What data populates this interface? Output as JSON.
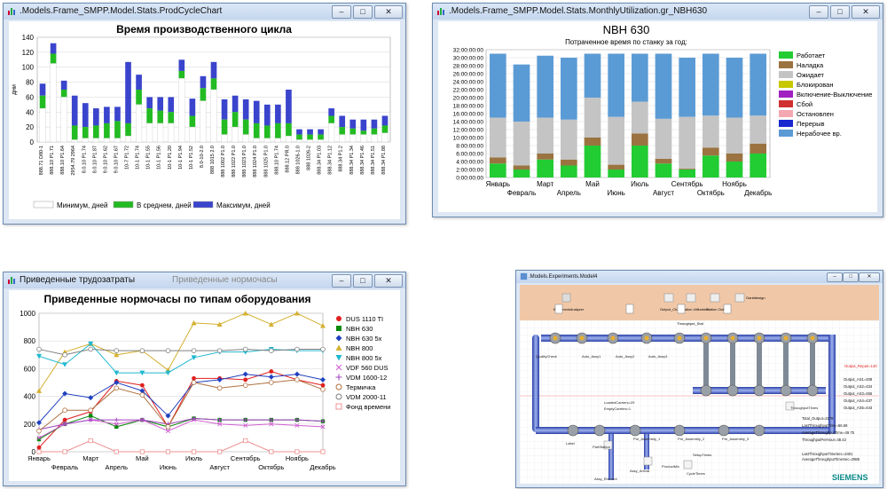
{
  "windows": {
    "w1": {
      "title": ".Models.Frame_SMPP.Model.Stats.ProdCycleChart"
    },
    "w2": {
      "title": ".Models.Frame_SMPP.Model.Stats.MonthlyUtilization.gr_NBH630"
    },
    "w3": {
      "title": "Приведенные трудозатраты",
      "title2": "Приведенные нормочасы"
    },
    "w4": {
      "title": ".Models.Experiments.Model4",
      "brand": "SIEMENS"
    }
  },
  "chart_data": [
    {
      "type": "bar",
      "title": "Время производственного цикла",
      "ylabel": "дни",
      "ylim": [
        0,
        140
      ],
      "yticks": [
        0,
        20,
        40,
        60,
        80,
        100,
        120,
        140
      ],
      "categories": [
        "888.71 D80-1",
        "888.10 P1.71",
        "888.10 P1.64",
        "2954.79 2964",
        "8.0.10 P1.74",
        "8.0.10 P1.87",
        "9.0.10 P1.62",
        "9.0.10 P1.67",
        "10-7 P1.72",
        "10-1 P1.74",
        "10-1 P1.55",
        "10-1 P1.56",
        "10-1 P1.20",
        "10-1 P1.94",
        "10-1 P1.52",
        "8.0-10-2.0",
        "888 1015 2.0",
        "888 1002 P1.0",
        "888 1022 P1.0",
        "888 1023 P1.0",
        "888 1024 P1.0",
        "888 1025 P1.0",
        "888.10 P1.74",
        "888.12 PR.0",
        "888 1026-1.0",
        "888 1026-2",
        "888.34 P1.03",
        "888.34 P1.12",
        "888.34 P1.2",
        "888.34 P1.34",
        "888.34 P1.46",
        "888.34 P1.51",
        "888.34 P1.88"
      ],
      "series": [
        {
          "name": "Минимум, дней",
          "values": [
            45,
            105,
            60,
            3,
            5,
            5,
            5,
            5,
            8,
            50,
            25,
            25,
            25,
            85,
            20,
            55,
            70,
            10,
            20,
            10,
            5,
            5,
            5,
            8,
            3,
            3,
            3,
            25,
            10,
            10,
            10,
            10,
            12
          ]
        },
        {
          "name": "В среднем, дней",
          "values": [
            62,
            118,
            70,
            22,
            20,
            22,
            25,
            28,
            25,
            70,
            45,
            42,
            40,
            95,
            35,
            72,
            85,
            30,
            40,
            30,
            25,
            22,
            25,
            25,
            10,
            10,
            10,
            35,
            20,
            18,
            15,
            18,
            22
          ]
        },
        {
          "name": "Максимум, дней",
          "values": [
            78,
            132,
            82,
            62,
            52,
            45,
            47,
            47,
            107,
            90,
            60,
            60,
            60,
            110,
            58,
            88,
            107,
            57,
            62,
            57,
            55,
            50,
            50,
            70,
            17,
            17,
            17,
            45,
            35,
            30,
            30,
            30,
            35
          ]
        }
      ],
      "legend": "bottom"
    },
    {
      "type": "bar",
      "title": "NBH 630",
      "subtitle": "Потраченное время по станку за год:",
      "ylim": [
        0,
        32
      ],
      "yticks": [
        "0:00:00:00",
        "2:00:00:00",
        "4:00:00:00",
        "6:00:00:00",
        "8:00:00:00",
        "10:00:00:00",
        "12:00:00:00",
        "14:00:00:00",
        "16:00:00:00",
        "18:00:00:00",
        "20:00:00:00",
        "22:00:00:00",
        "24:00:00:00",
        "26:00:00:00",
        "28:00:00:00",
        "30:00:00:00",
        "32:00:00:00"
      ],
      "categories": [
        "Январь",
        "Февраль",
        "Март",
        "Апрель",
        "Май",
        "Июнь",
        "Июль",
        "Август",
        "Сентябрь",
        "Октябрь",
        "Ноябрь",
        "Декабрь"
      ],
      "series": [
        {
          "name": "Работает",
          "color": "#22cc33",
          "values": [
            3.5,
            2.0,
            4.5,
            3.0,
            8.0,
            2.0,
            8.0,
            3.5,
            2.0,
            5.5,
            4.0,
            6.0
          ]
        },
        {
          "name": "Наладка",
          "color": "#9b7340",
          "values": [
            1.5,
            1.0,
            1.5,
            1.5,
            2.0,
            1.2,
            3.0,
            1.2,
            0.2,
            2.0,
            2.0,
            2.5
          ]
        },
        {
          "name": "Ожидает",
          "color": "#c4c4c4",
          "values": [
            10,
            11,
            9,
            10,
            10,
            12,
            8,
            10,
            13,
            8,
            9,
            7
          ]
        },
        {
          "name": "Блокирован",
          "color": "#c8c800",
          "values": [
            0,
            0,
            0,
            0,
            0,
            0,
            0,
            0,
            0,
            0,
            0,
            0
          ]
        },
        {
          "name": "Включение-Выключение",
          "color": "#a020c0",
          "values": [
            0,
            0,
            0,
            0,
            0,
            0,
            0,
            0,
            0,
            0,
            0,
            0
          ]
        },
        {
          "name": "Сбой",
          "color": "#d03030",
          "values": [
            0,
            0,
            0,
            0,
            0,
            0,
            0,
            0,
            0,
            0,
            0,
            0
          ]
        },
        {
          "name": "Остановлен",
          "color": "#f3a7b0",
          "values": [
            0,
            0,
            0,
            0,
            0,
            0,
            0,
            0,
            0,
            0,
            0,
            0
          ]
        },
        {
          "name": "Перерыв",
          "color": "#1a28d0",
          "values": [
            0,
            0,
            0,
            0,
            0,
            0,
            0,
            0,
            0,
            0,
            0,
            0
          ]
        },
        {
          "name": "Нерабочее вр.",
          "color": "#5b9bd5",
          "values": [
            16,
            14.3,
            15.5,
            15.5,
            11,
            15.8,
            12,
            16.3,
            14.8,
            15.5,
            15,
            15.5
          ]
        }
      ],
      "legend": "right"
    },
    {
      "type": "line",
      "title": "Приведенные нормочасы по типам оборудования",
      "ylim": [
        0,
        1000
      ],
      "yticks": [
        0,
        200,
        400,
        600,
        800,
        1000
      ],
      "categories": [
        "Январь",
        "Февраль",
        "Март",
        "Апрель",
        "Май",
        "Июнь",
        "Июль",
        "Август",
        "Сентябрь",
        "Октябрь",
        "Ноябрь",
        "Декабрь"
      ],
      "series": [
        {
          "name": "DUS 1110 TI",
          "color": "#e02020",
          "marker": "circle",
          "values": [
            30,
            230,
            290,
            510,
            480,
            180,
            530,
            530,
            520,
            580,
            520,
            480
          ]
        },
        {
          "name": "NBH 630",
          "color": "#0a8a0a",
          "marker": "square",
          "values": [
            90,
            200,
            260,
            180,
            230,
            180,
            240,
            230,
            230,
            230,
            230,
            220
          ]
        },
        {
          "name": "NBH 630 5x",
          "color": "#2040c0",
          "marker": "diamond",
          "values": [
            210,
            420,
            390,
            500,
            440,
            260,
            500,
            520,
            560,
            540,
            560,
            520
          ]
        },
        {
          "name": "NBH 800",
          "color": "#d4b030",
          "marker": "triangle-up",
          "values": [
            440,
            720,
            780,
            700,
            730,
            590,
            930,
            920,
            1000,
            920,
            1000,
            910
          ]
        },
        {
          "name": "NBH 800 5x",
          "color": "#20b8d0",
          "marker": "triangle-down",
          "values": [
            690,
            630,
            780,
            570,
            570,
            570,
            680,
            720,
            720,
            740,
            730,
            730
          ]
        },
        {
          "name": "VDF 560 DUS",
          "color": "#d060d0",
          "marker": "x",
          "values": [
            100,
            200,
            230,
            200,
            230,
            150,
            230,
            200,
            190,
            200,
            190,
            180
          ]
        },
        {
          "name": "VDM 1600-12",
          "color": "#a040c0",
          "marker": "plus",
          "values": [
            160,
            200,
            230,
            230,
            230,
            200,
            240,
            230,
            230,
            230,
            230,
            220
          ]
        },
        {
          "name": "Термичка",
          "color": "#b07040",
          "marker": "circle-open",
          "values": [
            150,
            300,
            300,
            460,
            410,
            180,
            500,
            460,
            480,
            500,
            520,
            450
          ]
        },
        {
          "name": "VDM 2000-11",
          "color": "#808080",
          "marker": "circle-open",
          "values": [
            740,
            700,
            740,
            730,
            730,
            730,
            730,
            730,
            740,
            730,
            740,
            740
          ]
        },
        {
          "name": "Фонд времени",
          "color": "#f09090",
          "marker": "square-open",
          "values": [
            0,
            0,
            80,
            0,
            0,
            0,
            0,
            0,
            80,
            0,
            0,
            0
          ]
        }
      ],
      "legend": "right"
    }
  ],
  "model": {
    "objects": {
      "buffer": "BottleneckAnalyzer",
      "output_chart": "Output_Chart",
      "station_util": "Station Utilization",
      "station_output": "Station Output",
      "gantt": "Ganttdesign",
      "throughput_stat": "Throughput_Stat",
      "qc": "QualityCheck",
      "asm1": "Auto_Assy1",
      "asm2": "Auto_Assy2",
      "asm3": "Auto_Assy3",
      "label": "Label",
      "loaded": "LoadedCarriers=29",
      "empty": "EmptyCarriers=1",
      "pre1": "Pre_Assembly_1",
      "pre2": "Pre_Assembly_2",
      "pre3": "Pre_Assembly_3",
      "setup": "SetupTimes",
      "throughput_times": "ThroughputTimes",
      "cycle_times": "CycleTimes",
      "assy_element": "Assy_Element",
      "assy_arrival": "Assy_Arrival",
      "product_mix": "ProductMix",
      "station": "PartStation"
    },
    "outputs": {
      "repair": "Output_Repair=140",
      "as1": "Output_AS1=408",
      "as2": "Output_AS2=434",
      "as3": "Output_AS3=456",
      "as4": "Output_AS4=437",
      "as5": "Output_AS5=443",
      "total": "Total_Output=2178",
      "last_tp": "LastThroughputTime=56.68",
      "avg_tp": "AverageThroughputTime=49.75",
      "tp_hour": "ThroughputPerHour=48.42",
      "last_sec": "LastThroughputTimeSec=3401",
      "avg_sec": "AverageThroughputTimeSec=2985"
    }
  }
}
